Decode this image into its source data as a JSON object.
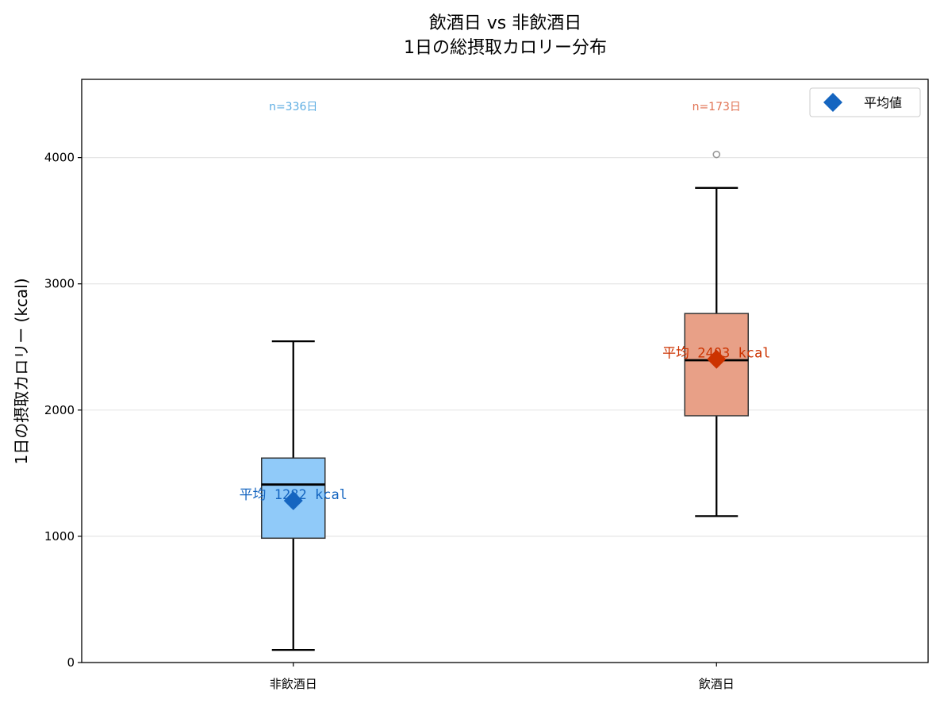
{
  "chart_data": {
    "type": "box",
    "title": "飲酒日 vs 非飲酒日",
    "subtitle": "1日の総摂取カロリー分布",
    "ylabel": "1日の摂取カロリー (kcal)",
    "xlabel": "",
    "ylim": [
      0,
      4620
    ],
    "yticks": [
      0,
      1000,
      2000,
      3000,
      4000
    ],
    "ytick_labels": [
      "0",
      "1000",
      "2000",
      "3000",
      "4000"
    ],
    "grid": "y",
    "legend": {
      "position": "top-right",
      "entries": [
        {
          "label": "平均値",
          "marker": "diamond",
          "color": "#1565c0"
        }
      ]
    },
    "categories": [
      "非飲酒日",
      "飲酒日"
    ],
    "boxes": [
      {
        "category": "非飲酒日",
        "whisker_low": 100,
        "q1": 985,
        "median": 1410,
        "q3": 1620,
        "whisker_high": 2545,
        "mean": 1282,
        "outliers": [],
        "n_label": "n=336日",
        "mean_label": "平均 1282 kcal",
        "fill_color": "#90caf9",
        "label_color": "#5dade2",
        "mean_color": "#1565c0"
      },
      {
        "category": "飲酒日",
        "whisker_low": 1160,
        "q1": 1955,
        "median": 2395,
        "q3": 2765,
        "whisker_high": 3760,
        "mean": 2403,
        "outliers": [
          4025
        ],
        "n_label": "n=173日",
        "mean_label": "平均 2403 kcal",
        "fill_color": "#e8a087",
        "label_color": "#e07050",
        "mean_color": "#cc3300"
      }
    ]
  }
}
